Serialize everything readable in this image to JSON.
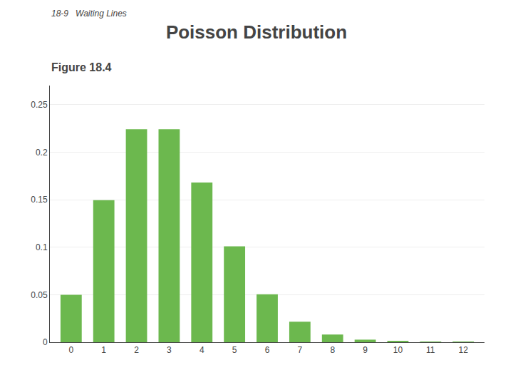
{
  "chart_data": {
    "type": "bar",
    "title": "Poisson Distribution",
    "subtitle": "18-9   Waiting Lines",
    "annotations": [
      "Figure 18.4"
    ],
    "x": [
      0,
      1,
      2,
      3,
      4,
      5,
      6,
      7,
      8,
      9,
      10,
      11,
      12
    ],
    "values": [
      0.0498,
      0.1494,
      0.224,
      0.224,
      0.168,
      0.1008,
      0.0504,
      0.0216,
      0.0081,
      0.0027,
      0.0008,
      0.0002,
      0.0001
    ],
    "color": "#6cb84e",
    "xlim": [
      -0.65,
      12.65
    ],
    "xticks": [
      0,
      1,
      2,
      3,
      4,
      5,
      6,
      7,
      8,
      9,
      10,
      11,
      12
    ],
    "ylim": [
      0,
      0.27
    ],
    "yticks": [
      0,
      0.05,
      0.1,
      0.15,
      0.2,
      0.25
    ],
    "grid": true
  }
}
